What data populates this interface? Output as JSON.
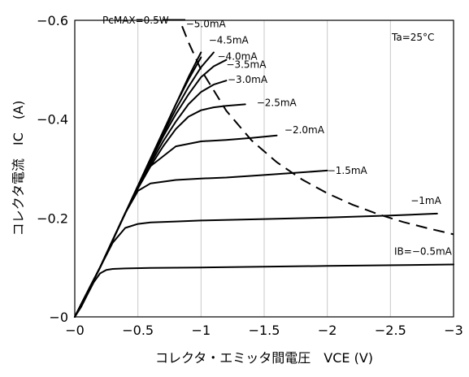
{
  "chart_data": {
    "type": "line",
    "title": "",
    "xlabel": "コレクタ・エミッタ間電圧　VCE (V)",
    "ylabel": "コレクタ電流　IC　(A)",
    "xlim": [
      0,
      -3
    ],
    "ylim": [
      0,
      -0.6
    ],
    "x_ticks": [
      "−0",
      "−0.5",
      "−1",
      "−1.5",
      "−2",
      "−2.5",
      "−3"
    ],
    "y_ticks": [
      "−0",
      "−0.2",
      "−0.4",
      "−0.6"
    ],
    "grid": "vertical",
    "annotation": "Ta=25°C",
    "series": [
      {
        "name": "IB=−0.5mA",
        "x": [
          0,
          -0.05,
          -0.1,
          -0.15,
          -0.2,
          -0.25,
          -0.3,
          -0.4,
          -0.6,
          -1,
          -2,
          -3
        ],
        "y": [
          0,
          -0.02,
          -0.045,
          -0.07,
          -0.088,
          -0.095,
          -0.097,
          -0.098,
          -0.099,
          -0.1,
          -0.103,
          -0.106
        ]
      },
      {
        "name": "−1mA",
        "x": [
          0,
          -0.1,
          -0.2,
          -0.3,
          -0.4,
          -0.5,
          -0.6,
          -0.8,
          -1,
          -1.5,
          -2,
          -2.5,
          -2.87
        ],
        "y": [
          0,
          -0.05,
          -0.1,
          -0.15,
          -0.18,
          -0.188,
          -0.191,
          -0.193,
          -0.195,
          -0.198,
          -0.201,
          -0.205,
          -0.209
        ]
      },
      {
        "name": "−1.5mA",
        "x": [
          0,
          -0.1,
          -0.2,
          -0.3,
          -0.4,
          -0.5,
          -0.6,
          -0.8,
          -1,
          -1.2,
          -1.5,
          -2
        ],
        "y": [
          0,
          -0.05,
          -0.1,
          -0.155,
          -0.21,
          -0.255,
          -0.27,
          -0.277,
          -0.28,
          -0.282,
          -0.287,
          -0.296
        ]
      },
      {
        "name": "−2.0mA",
        "x": [
          0,
          -0.1,
          -0.2,
          -0.3,
          -0.4,
          -0.5,
          -0.6,
          -0.8,
          -1,
          -1.2,
          -1.4,
          -1.6
        ],
        "y": [
          0,
          -0.05,
          -0.1,
          -0.155,
          -0.21,
          -0.26,
          -0.305,
          -0.345,
          -0.355,
          -0.358,
          -0.362,
          -0.367
        ]
      },
      {
        "name": "−2.5mA",
        "x": [
          0,
          -0.1,
          -0.2,
          -0.3,
          -0.4,
          -0.5,
          -0.6,
          -0.7,
          -0.8,
          -0.9,
          -1,
          -1.1,
          -1.2,
          -1.35
        ],
        "y": [
          0,
          -0.05,
          -0.1,
          -0.155,
          -0.21,
          -0.26,
          -0.305,
          -0.345,
          -0.38,
          -0.405,
          -0.418,
          -0.424,
          -0.427,
          -0.43
        ]
      },
      {
        "name": "−3.0mA",
        "x": [
          0,
          -0.1,
          -0.2,
          -0.3,
          -0.4,
          -0.5,
          -0.6,
          -0.7,
          -0.8,
          -0.9,
          -1,
          -1.1,
          -1.2
        ],
        "y": [
          0,
          -0.05,
          -0.1,
          -0.155,
          -0.21,
          -0.26,
          -0.31,
          -0.355,
          -0.395,
          -0.43,
          -0.455,
          -0.47,
          -0.478
        ]
      },
      {
        "name": "−3.5mA",
        "x": [
          0,
          -0.1,
          -0.2,
          -0.3,
          -0.4,
          -0.5,
          -0.6,
          -0.7,
          -0.8,
          -0.9,
          -1,
          -1.1,
          -1.2
        ],
        "y": [
          0,
          -0.05,
          -0.1,
          -0.155,
          -0.21,
          -0.265,
          -0.315,
          -0.365,
          -0.41,
          -0.45,
          -0.485,
          -0.507,
          -0.52
        ]
      },
      {
        "name": "−4.0mA",
        "x": [
          0,
          -0.1,
          -0.2,
          -0.3,
          -0.4,
          -0.5,
          -0.6,
          -0.7,
          -0.8,
          -0.9,
          -1,
          -1.1
        ],
        "y": [
          0,
          -0.05,
          -0.1,
          -0.155,
          -0.21,
          -0.265,
          -0.32,
          -0.37,
          -0.42,
          -0.465,
          -0.505,
          -0.535
        ]
      },
      {
        "name": "−4.5mA",
        "x": [
          0,
          -0.1,
          -0.2,
          -0.3,
          -0.4,
          -0.5,
          -0.6,
          -0.7,
          -0.8,
          -0.9,
          -1
        ],
        "y": [
          0,
          -0.05,
          -0.1,
          -0.155,
          -0.21,
          -0.265,
          -0.32,
          -0.375,
          -0.43,
          -0.48,
          -0.525
        ]
      },
      {
        "name": "−5.0mA",
        "x": [
          0,
          -0.1,
          -0.2,
          -0.3,
          -0.4,
          -0.5,
          -0.6,
          -0.7,
          -0.8,
          -0.9,
          -1
        ],
        "y": [
          0,
          -0.05,
          -0.1,
          -0.155,
          -0.21,
          -0.265,
          -0.32,
          -0.375,
          -0.43,
          -0.485,
          -0.535
        ]
      }
    ],
    "pcmax": {
      "name": "PcMAX=0.5W",
      "x": [
        -0.85,
        -0.9,
        -1,
        -1.2,
        -1.4,
        -1.6,
        -1.8,
        -2,
        -2.2,
        -2.4,
        -2.6,
        -2.8,
        -3
      ],
      "y": [
        -0.588,
        -0.556,
        -0.5,
        -0.417,
        -0.357,
        -0.313,
        -0.278,
        -0.25,
        -0.227,
        -0.208,
        -0.192,
        -0.179,
        -0.167
      ]
    },
    "curve_labels": [
      {
        "text": "−5.0mA",
        "x": -0.88,
        "y": -0.593
      },
      {
        "text": "−4.5mA",
        "x": -1.06,
        "y": -0.56
      },
      {
        "text": "−4.0mA",
        "x": -1.13,
        "y": -0.527
      },
      {
        "text": "−3.5mA",
        "x": -1.2,
        "y": -0.51
      },
      {
        "text": "−3.0mA",
        "x": -1.21,
        "y": -0.48
      },
      {
        "text": "−2.5mA",
        "x": -1.44,
        "y": -0.433
      },
      {
        "text": "−2.0mA",
        "x": -1.66,
        "y": -0.378
      },
      {
        "text": "−1.5mA",
        "x": -2.0,
        "y": -0.296
      },
      {
        "text": "−1mA",
        "x": -2.66,
        "y": -0.235
      },
      {
        "text": "IB=−0.5mA",
        "x": -2.53,
        "y": -0.132
      }
    ]
  }
}
